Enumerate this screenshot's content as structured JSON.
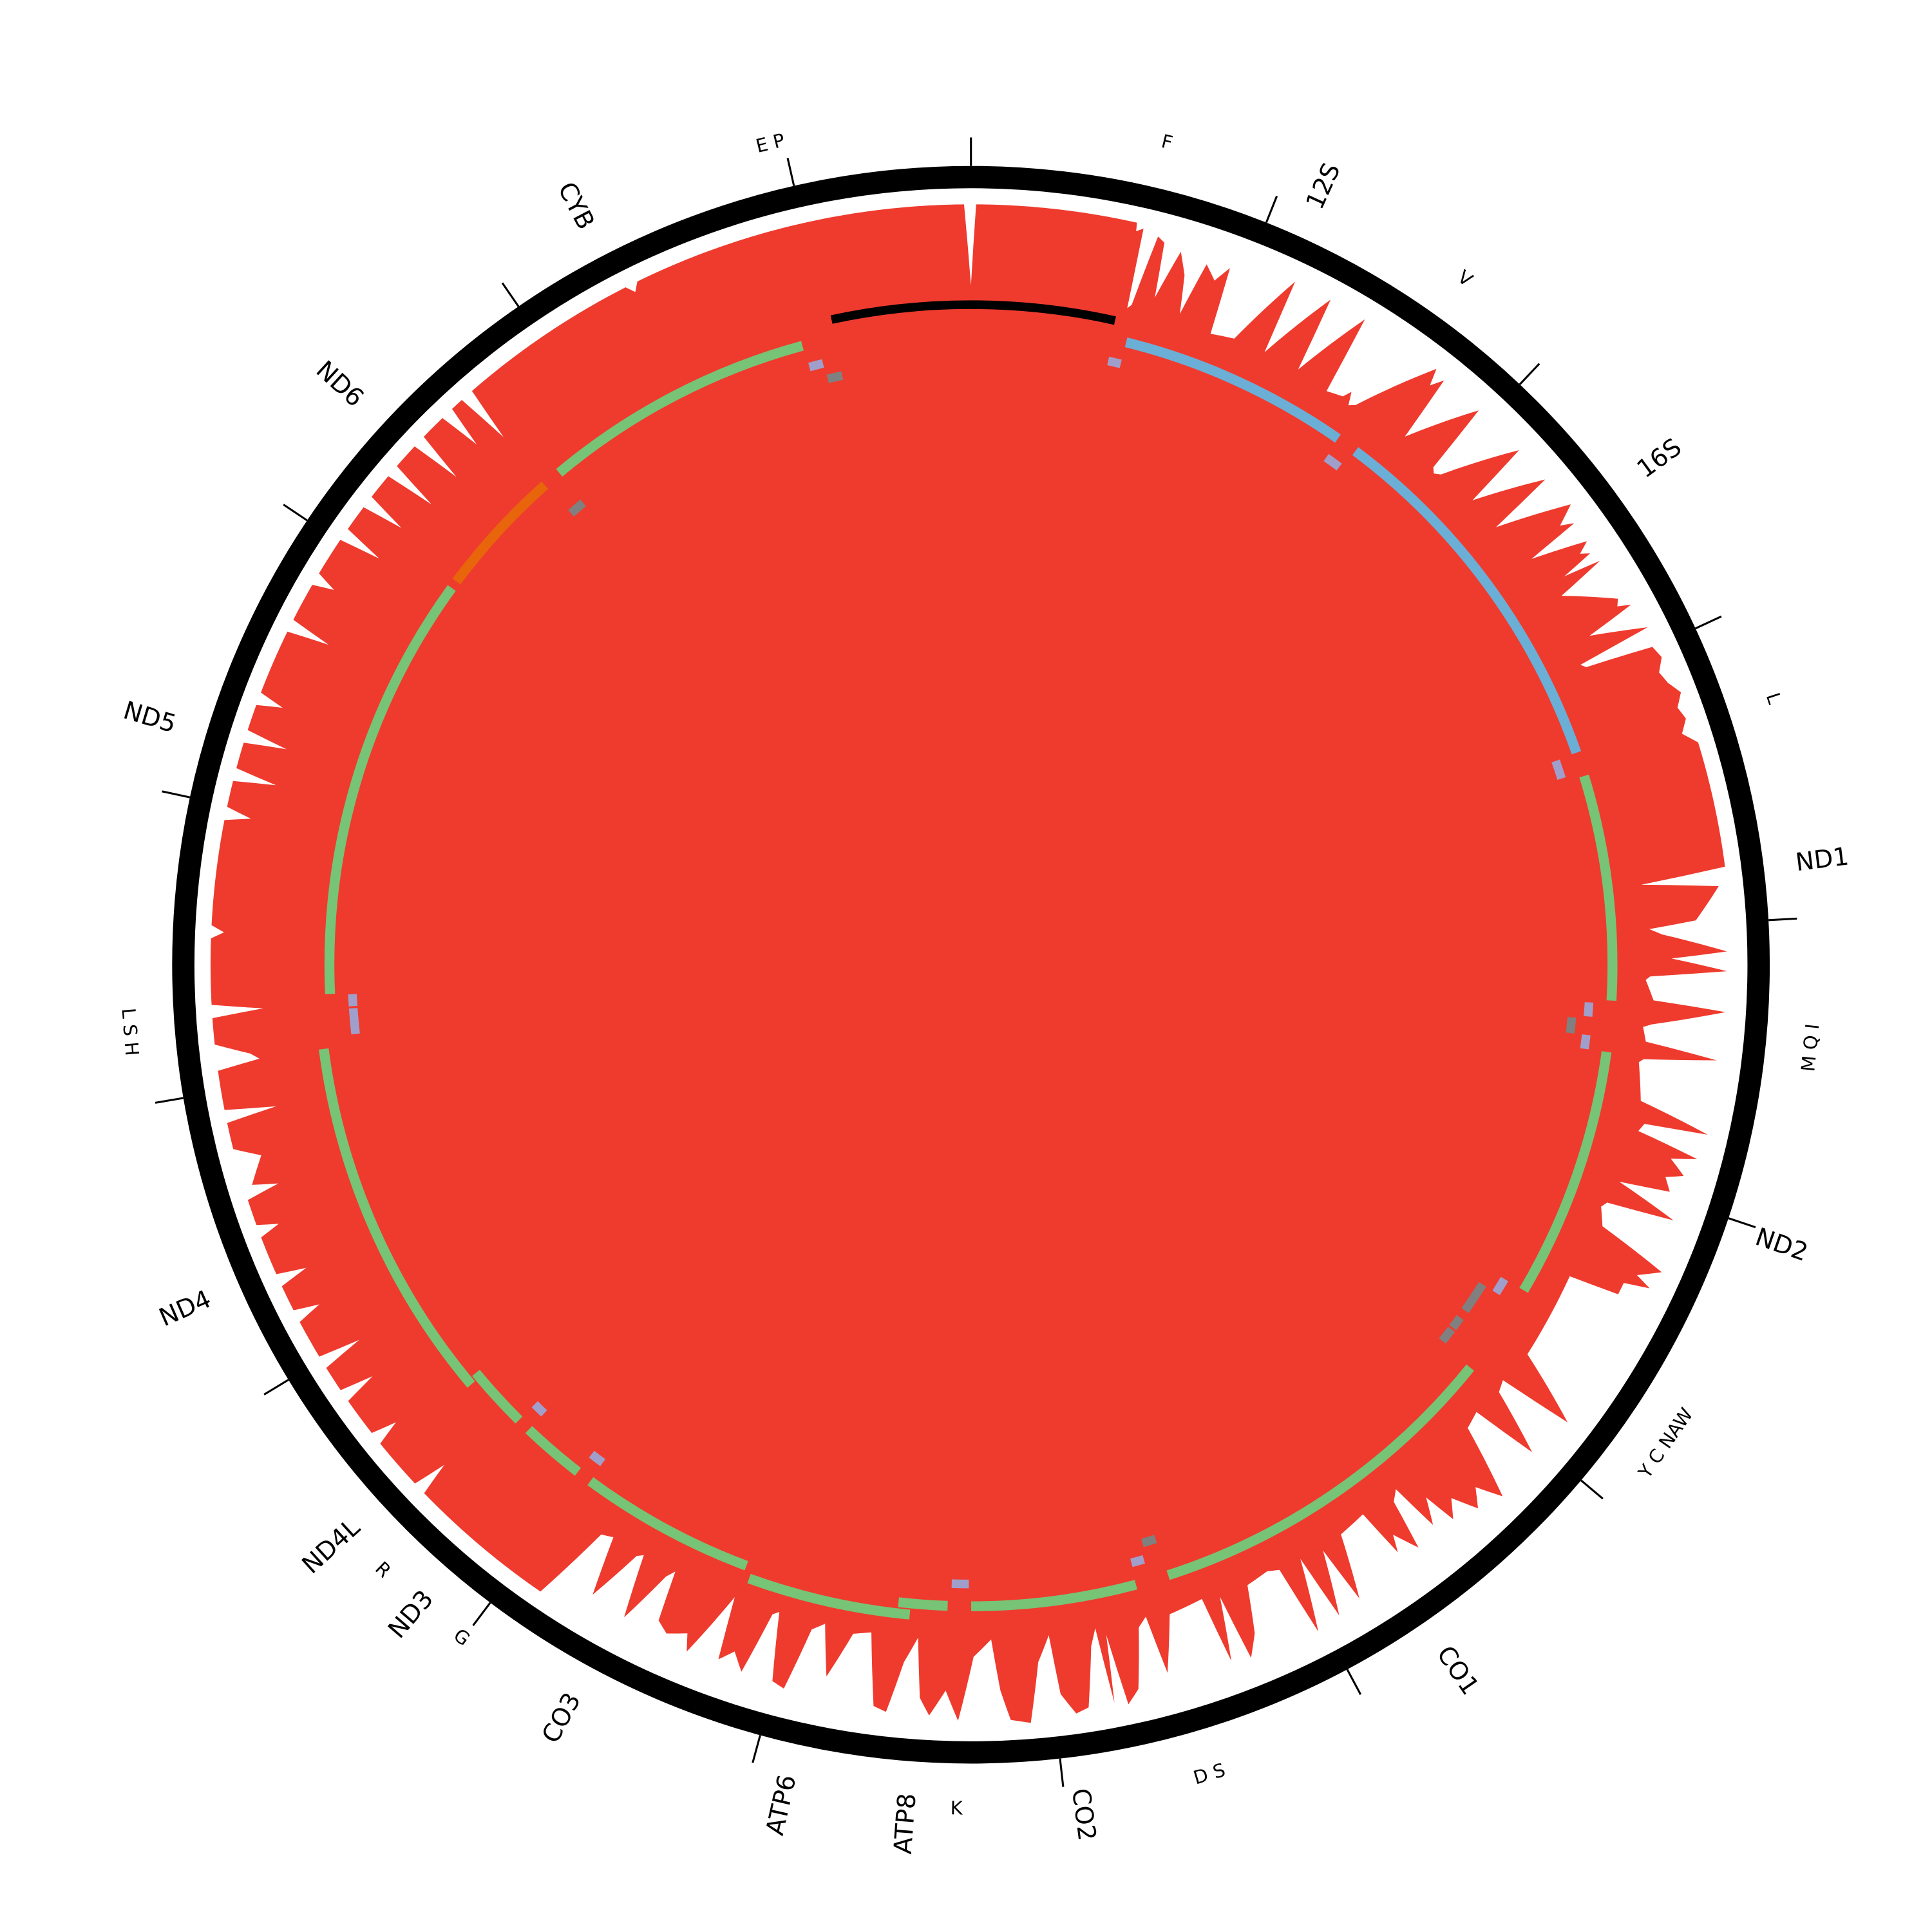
{
  "chart_data": {
    "type": "circular-genome",
    "genome_length": 16590,
    "tick_interval": 1000,
    "colors": {
      "backbone": "#000000",
      "coverage": "#EE3B2E",
      "control_region": "#000000",
      "protein_coding": "#77C476",
      "rRNA": "#6BAED6",
      "minus_strand_gene": "#E8650C",
      "trna_plus": "#A09FCB",
      "trna_minus": "#808080"
    },
    "control_region": {
      "start": 16028,
      "end": 581
    },
    "genes": [
      {
        "name": "12S",
        "start": 645,
        "end": 1608,
        "color": "#6BAED6"
      },
      {
        "name": "16S",
        "start": 1696,
        "end": 3258,
        "color": "#6BAED6"
      },
      {
        "name": "ND1",
        "start": 3359,
        "end": 4295,
        "color": "#77C476"
      },
      {
        "name": "ND2",
        "start": 4507,
        "end": 5553,
        "color": "#77C476"
      },
      {
        "name": "CO1",
        "start": 5940,
        "end": 7470,
        "color": "#77C476"
      },
      {
        "name": "CO2",
        "start": 7608,
        "end": 8294,
        "color": "#77C476"
      },
      {
        "name": "ATP8",
        "start": 8391,
        "end": 8594,
        "color": "#77C476"
      },
      {
        "name": "ATP6",
        "start": 8543,
        "end": 9211,
        "color": "#77C476"
      },
      {
        "name": "CO3",
        "start": 9239,
        "end": 9972,
        "color": "#77C476"
      },
      {
        "name": "ND3",
        "start": 10036,
        "end": 10303,
        "color": "#77C476"
      },
      {
        "name": "ND4L",
        "start": 10359,
        "end": 10622,
        "color": "#77C476"
      },
      {
        "name": "ND4",
        "start": 10598,
        "end": 12101,
        "color": "#77C476"
      },
      {
        "name": "ND5",
        "start": 12322,
        "end": 14100,
        "color": "#77C476"
      },
      {
        "name": "ND6",
        "start": 14133,
        "end": 14672,
        "color": "#E8650C"
      },
      {
        "name": "CYB",
        "start": 14750,
        "end": 15888,
        "color": "#77C476"
      }
    ],
    "trnas": [
      {
        "name": "F",
        "start": 590,
        "end": 645,
        "strand": "+"
      },
      {
        "name": "V",
        "start": 1613,
        "end": 1682,
        "strand": "+"
      },
      {
        "name": "L",
        "start": 3262,
        "end": 3341,
        "strand": "+"
      },
      {
        "name": "I",
        "start": 4308,
        "end": 4368,
        "strand": "+"
      },
      {
        "name": "Q",
        "start": 4378,
        "end": 4447,
        "strand": "-"
      },
      {
        "name": "M",
        "start": 4447,
        "end": 4507,
        "strand": "+"
      },
      {
        "name": "W",
        "start": 5553,
        "end": 5622,
        "strand": "+"
      },
      {
        "name": "A",
        "start": 5622,
        "end": 5691,
        "strand": "-"
      },
      {
        "name": "N",
        "start": 5691,
        "end": 5760,
        "strand": "-"
      },
      {
        "name": "C",
        "start": 5797,
        "end": 5852,
        "strand": "-"
      },
      {
        "name": "Y",
        "start": 5861,
        "end": 5926,
        "strand": "-"
      },
      {
        "name": "S",
        "start": 7474,
        "end": 7534,
        "strand": "-"
      },
      {
        "name": "D",
        "start": 7548,
        "end": 7603,
        "strand": "+"
      },
      {
        "name": "K",
        "start": 8304,
        "end": 8377,
        "strand": "+"
      },
      {
        "name": "G",
        "start": 9976,
        "end": 10036,
        "strand": "+"
      },
      {
        "name": "R",
        "start": 10303,
        "end": 10359,
        "strand": "+"
      },
      {
        "name": "H",
        "start": 12147,
        "end": 12202,
        "strand": "+"
      },
      {
        "name": "S",
        "start": 12202,
        "end": 12257,
        "strand": "+"
      },
      {
        "name": "L",
        "start": 12266,
        "end": 12317,
        "strand": "+"
      },
      {
        "name": "",
        "start": 14676,
        "end": 14746,
        "strand": "-"
      },
      {
        "name": "E",
        "start": 15893,
        "end": 15953,
        "strand": "+"
      },
      {
        "name": "P",
        "start": 15957,
        "end": 16022,
        "strand": "-"
      }
    ],
    "trna_labels": [
      {
        "text": "F",
        "members": [
          0
        ]
      },
      {
        "text": "V",
        "members": [
          1
        ]
      },
      {
        "text": "L",
        "members": [
          2
        ]
      },
      {
        "text": "M Q I",
        "members": [
          3,
          4,
          5
        ]
      },
      {
        "text": "Y C NAW",
        "members": [
          6,
          7,
          8,
          9,
          10
        ]
      },
      {
        "text": "D S",
        "members": [
          11,
          12
        ]
      },
      {
        "text": "K",
        "members": [
          13
        ]
      },
      {
        "text": "G",
        "members": [
          14
        ]
      },
      {
        "text": "R",
        "members": [
          15
        ]
      },
      {
        "text": "L S H",
        "members": [
          16,
          17,
          18
        ]
      },
      {
        "text": "E P",
        "members": [
          20,
          21
        ]
      }
    ],
    "coverage": [
      [
        0,
        0.05
      ],
      [
        18,
        1
      ],
      [
        581,
        1
      ],
      [
        585,
        0.9
      ],
      [
        608,
        0.95
      ],
      [
        617,
        0
      ],
      [
        631,
        0.05
      ],
      [
        664,
        0.9
      ],
      [
        691,
        0.85
      ],
      [
        710,
        0.2
      ],
      [
        756,
        0.8
      ],
      [
        793,
        0.55
      ],
      [
        820,
        0.1
      ],
      [
        857,
        0.75
      ],
      [
        903,
        0.6
      ],
      [
        940,
        0.8
      ],
      [
        958,
        0
      ],
      [
        1051,
        0.05
      ],
      [
        1170,
        0.95
      ],
      [
        1180,
        0.05
      ],
      [
        1309,
        0.95
      ],
      [
        1327,
        0.05
      ],
      [
        1447,
        0.95
      ],
      [
        1465,
        0
      ],
      [
        1530,
        0.05
      ],
      [
        1548,
        0.15
      ],
      [
        1567,
        0
      ],
      [
        1590,
        0.05
      ],
      [
        1751,
        0.95
      ],
      [
        1769,
        0.75
      ],
      [
        1797,
        0.9
      ],
      [
        1816,
        0.1
      ],
      [
        1958,
        0.9
      ],
      [
        1977,
        0.05
      ],
      [
        1995,
        0
      ],
      [
        2018,
        0.05
      ],
      [
        2157,
        0.9
      ],
      [
        2175,
        0.1
      ],
      [
        2295,
        0.9
      ],
      [
        2313,
        0.1
      ],
      [
        2419,
        0.95
      ],
      [
        2456,
        0.7
      ],
      [
        2479,
        0.85
      ],
      [
        2493,
        0.2
      ],
      [
        2557,
        0.85
      ],
      [
        2580,
        0.7
      ],
      [
        2599,
        0.8
      ],
      [
        2617,
        0.4
      ],
      [
        2640,
        0.85
      ],
      [
        2673,
        0.25
      ],
      [
        2788,
        0.8
      ],
      [
        2811,
        0.75
      ],
      [
        2829,
        0.9
      ],
      [
        2857,
        0.3
      ],
      [
        2926,
        0.95
      ],
      [
        2940,
        0.05
      ],
      [
        2958,
        0.1
      ],
      [
        2995,
        0.9
      ],
      [
        3041,
        0.95
      ],
      [
        3087,
        0.85
      ],
      [
        3133,
        0.9
      ],
      [
        3180,
        1
      ],
      [
        3226,
        0.9
      ],
      [
        3272,
        0.95
      ],
      [
        3318,
        0.85
      ],
      [
        3364,
        1
      ],
      [
        3806,
        1
      ],
      [
        3834,
        0
      ],
      [
        3871,
        0.9
      ],
      [
        3986,
        0.6
      ],
      [
        4009,
        0.05
      ],
      [
        4032,
        0.2
      ],
      [
        4101,
        0.95
      ],
      [
        4124,
        0.3
      ],
      [
        4170,
        0.95
      ],
      [
        4193,
        0.05
      ],
      [
        4207,
        0
      ],
      [
        4285,
        0.1
      ],
      [
        4313,
        0.95
      ],
      [
        4378,
        0.1
      ],
      [
        4391,
        0
      ],
      [
        4447,
        0.05
      ],
      [
        4484,
        0.9
      ],
      [
        4516,
        0.05
      ],
      [
        4530,
        0
      ],
      [
        4677,
        0.1
      ],
      [
        4746,
        0.95
      ],
      [
        4760,
        0.2
      ],
      [
        4792,
        0.15
      ],
      [
        4838,
        0.9
      ],
      [
        4861,
        0.6
      ],
      [
        4908,
        0.8
      ],
      [
        4931,
        0.6
      ],
      [
        4977,
        0.7
      ],
      [
        5000,
        0.1
      ],
      [
        5069,
        0.85
      ],
      [
        5092,
        0.05
      ],
      [
        5115,
        0
      ],
      [
        5184,
        0.1
      ],
      [
        5253,
        0.95
      ],
      [
        5299,
        0.7
      ],
      [
        5322,
        0.9
      ],
      [
        5345,
        0.6
      ],
      [
        5391,
        0.6
      ],
      [
        5414,
        0
      ],
      [
        5760,
        0.05
      ],
      [
        5875,
        0.9
      ],
      [
        5898,
        0
      ],
      [
        5944,
        0.05
      ],
      [
        6036,
        0.8
      ],
      [
        6060,
        0
      ],
      [
        6129,
        0.05
      ],
      [
        6221,
        0.9
      ],
      [
        6267,
        0.6
      ],
      [
        6313,
        0.8
      ],
      [
        6359,
        0.5
      ],
      [
        6405,
        0.7
      ],
      [
        6428,
        0.3
      ],
      [
        6474,
        0.6
      ],
      [
        6497,
        0
      ],
      [
        6534,
        0.1
      ],
      [
        6566,
        0.7
      ],
      [
        6612,
        0.4
      ],
      [
        6636,
        0.6
      ],
      [
        6659,
        0
      ],
      [
        6774,
        0.05
      ],
      [
        6843,
        0.8
      ],
      [
        6866,
        0.1
      ],
      [
        6935,
        0.85
      ],
      [
        6958,
        0.05
      ],
      [
        7027,
        0.9
      ],
      [
        7050,
        0.05
      ],
      [
        7096,
        0
      ],
      [
        7188,
        0.05
      ],
      [
        7235,
        0.6
      ],
      [
        7281,
        0.85
      ],
      [
        7304,
        0.05
      ],
      [
        7350,
        0.8
      ],
      [
        7373,
        0
      ],
      [
        7511,
        0.05
      ],
      [
        7580,
        0.7
      ],
      [
        7603,
        0
      ],
      [
        7640,
        0.1
      ],
      [
        7695,
        0.8
      ],
      [
        7741,
        0.95
      ],
      [
        7769,
        0.1
      ],
      [
        7788,
        0.9
      ],
      [
        7806,
        0
      ],
      [
        7834,
        0.2
      ],
      [
        7880,
        0.9
      ],
      [
        7926,
        0.95
      ],
      [
        7972,
        0.7
      ],
      [
        7990,
        0
      ],
      [
        8041,
        0.3
      ],
      [
        8087,
        1
      ],
      [
        8156,
        0.95
      ],
      [
        8188,
        0.6
      ],
      [
        8216,
        0
      ],
      [
        8285,
        0.2
      ],
      [
        8340,
        0.95
      ],
      [
        8387,
        0.6
      ],
      [
        8442,
        0.9
      ],
      [
        8479,
        0.7
      ],
      [
        8502,
        0
      ],
      [
        8548,
        0.3
      ],
      [
        8594,
        0.9
      ],
      [
        8640,
        0.85
      ],
      [
        8686,
        0
      ],
      [
        8755,
        0.05
      ],
      [
        8824,
        0.6
      ],
      [
        8870,
        0
      ],
      [
        8916,
        0.1
      ],
      [
        8963,
        0.85
      ],
      [
        9009,
        0.8
      ],
      [
        9055,
        0
      ],
      [
        9078,
        0.05
      ],
      [
        9124,
        0.8
      ],
      [
        9170,
        0.6
      ],
      [
        9216,
        0.75
      ],
      [
        9239,
        0
      ],
      [
        9262,
        0.2
      ],
      [
        9331,
        0.8
      ],
      [
        9354,
        0.6
      ],
      [
        9423,
        0.7
      ],
      [
        9469,
        0.6
      ],
      [
        9492,
        0
      ],
      [
        9516,
        0.1
      ],
      [
        9585,
        0.75
      ],
      [
        9631,
        0
      ],
      [
        9654,
        0.05
      ],
      [
        9723,
        0.7
      ],
      [
        9769,
        0
      ],
      [
        9815,
        0.05
      ],
      [
        9884,
        1
      ],
      [
        10414,
        1
      ],
      [
        10437,
        0.6
      ],
      [
        10460,
        1
      ],
      [
        10644,
        1
      ],
      [
        10668,
        0.7
      ],
      [
        10691,
        1
      ],
      [
        10829,
        1
      ],
      [
        10852,
        0.6
      ],
      [
        10875,
        1
      ],
      [
        10967,
        1
      ],
      [
        10990,
        0.5
      ],
      [
        11013,
        1
      ],
      [
        11151,
        1
      ],
      [
        11174,
        0.7
      ],
      [
        11197,
        1
      ],
      [
        11290,
        1
      ],
      [
        11313,
        0.65
      ],
      [
        11336,
        1
      ],
      [
        11474,
        1
      ],
      [
        11497,
        0.75
      ],
      [
        11520,
        1
      ],
      [
        11612,
        1
      ],
      [
        11635,
        0.6
      ],
      [
        11658,
        0.9
      ],
      [
        11750,
        0.7
      ],
      [
        11796,
        1
      ],
      [
        11889,
        1
      ],
      [
        11912,
        0.4
      ],
      [
        11935,
        1
      ],
      [
        12073,
        1
      ],
      [
        12096,
        0.5
      ],
      [
        12119,
        0.6
      ],
      [
        12165,
        1
      ],
      [
        12257,
        1
      ],
      [
        12280,
        0.4
      ],
      [
        12303,
        1
      ],
      [
        12534,
        1
      ],
      [
        12557,
        0.85
      ],
      [
        12580,
        1
      ],
      [
        12948,
        1
      ],
      [
        12971,
        0.7
      ],
      [
        12995,
        1
      ],
      [
        13087,
        1
      ],
      [
        13110,
        0.5
      ],
      [
        13133,
        1
      ],
      [
        13225,
        1
      ],
      [
        13248,
        0.5
      ],
      [
        13271,
        1
      ],
      [
        13363,
        1
      ],
      [
        13386,
        0.7
      ],
      [
        13409,
        1
      ],
      [
        13640,
        1
      ],
      [
        13663,
        0.5
      ],
      [
        13686,
        1
      ],
      [
        13824,
        1
      ],
      [
        13847,
        0.75
      ],
      [
        13870,
        1
      ],
      [
        14008,
        1
      ],
      [
        14031,
        0.5
      ],
      [
        14054,
        1
      ],
      [
        14147,
        1
      ],
      [
        14170,
        0.5
      ],
      [
        14193,
        1
      ],
      [
        14285,
        1
      ],
      [
        14308,
        0.4
      ],
      [
        14331,
        1
      ],
      [
        14423,
        1
      ],
      [
        14446,
        0.4
      ],
      [
        14469,
        1
      ],
      [
        14561,
        1
      ],
      [
        14584,
        0.5
      ],
      [
        14607,
        1
      ],
      [
        14653,
        1
      ],
      [
        14676,
        0.35
      ],
      [
        14700,
        1
      ],
      [
        15345,
        1
      ],
      [
        15368,
        0.9
      ],
      [
        15391,
        1
      ],
      [
        16566,
        1
      ],
      [
        16590,
        0.05
      ]
    ]
  }
}
